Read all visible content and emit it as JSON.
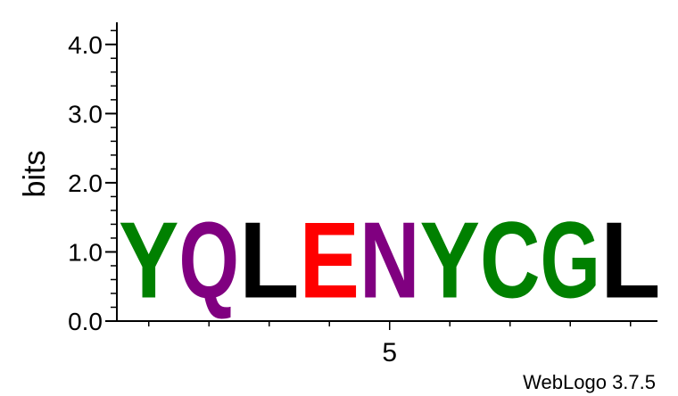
{
  "chart_data": {
    "type": "sequence-logo",
    "ylabel": "bits",
    "ylim": [
      0,
      4.32
    ],
    "y_ticks": [
      "0.0",
      "1.0",
      "2.0",
      "3.0",
      "4.0"
    ],
    "y_tick_values": [
      0,
      1,
      2,
      3,
      4
    ],
    "y_minor_step": 0.2,
    "x_tick_label": "5",
    "x_tick_label_position": 5,
    "positions": [
      {
        "pos": 1,
        "letter": "Y",
        "bits": 1.75,
        "color": "#008000"
      },
      {
        "pos": 2,
        "letter": "Q",
        "bits": 1.75,
        "color": "#800080"
      },
      {
        "pos": 3,
        "letter": "L",
        "bits": 1.75,
        "color": "#000000"
      },
      {
        "pos": 4,
        "letter": "E",
        "bits": 1.75,
        "color": "#ff0000"
      },
      {
        "pos": 5,
        "letter": "N",
        "bits": 1.75,
        "color": "#800080"
      },
      {
        "pos": 6,
        "letter": "Y",
        "bits": 1.75,
        "color": "#008000"
      },
      {
        "pos": 7,
        "letter": "C",
        "bits": 1.75,
        "color": "#008000"
      },
      {
        "pos": 8,
        "letter": "G",
        "bits": 1.75,
        "color": "#008000"
      },
      {
        "pos": 9,
        "letter": "L",
        "bits": 1.75,
        "color": "#000000"
      }
    ],
    "credit": "WebLogo 3.7.5"
  }
}
